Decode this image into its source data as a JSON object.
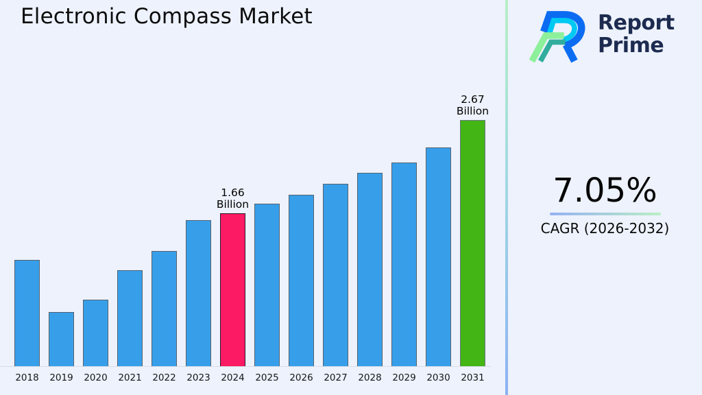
{
  "title": "Electronic Compass Market",
  "background": "#edf2fc",
  "logo": {
    "line1": "Report",
    "line2": "Prime",
    "text_color": "#1d2b50",
    "mark_colors": {
      "blue": "#0b6cf2",
      "cyan": "#00c9f2",
      "light_green": "#8df09b",
      "teal": "#31ad9e"
    }
  },
  "divider": {
    "gradient_top": "#b6f0c4",
    "gradient_mid": "#a3d9e2",
    "gradient_bottom": "#8ab2f3"
  },
  "cagr_panel": {
    "value": "7.05%",
    "label": "CAGR (2026-2032)",
    "underline_from": "#96b0f2",
    "underline_to": "#b9efc4"
  },
  "chart_data": {
    "type": "bar",
    "title": "Electronic Compass Market",
    "categories": [
      "2018",
      "2019",
      "2020",
      "2021",
      "2022",
      "2023",
      "2024",
      "2025",
      "2026",
      "2027",
      "2028",
      "2029",
      "2030",
      "2031"
    ],
    "values": [
      1.15,
      0.59,
      0.72,
      1.04,
      1.25,
      1.58,
      1.66,
      1.76,
      1.86,
      1.98,
      2.1,
      2.21,
      2.37,
      2.67
    ],
    "unit": "Billion",
    "ylim": [
      0,
      2.8
    ],
    "grid": false,
    "legend": "none",
    "annotations": [
      {
        "category": "2024",
        "lines": [
          "1.66",
          "Billion"
        ]
      },
      {
        "category": "2031",
        "lines": [
          "2.67",
          "Billion"
        ]
      }
    ],
    "colors": {
      "default": {
        "fill": "#379fea",
        "border": "#56616e"
      },
      "highlights": {
        "2024": {
          "fill": "#fb1a63",
          "border": "#251d33"
        },
        "2031": {
          "fill": "#43b514",
          "border": "#6b7683"
        }
      }
    }
  }
}
